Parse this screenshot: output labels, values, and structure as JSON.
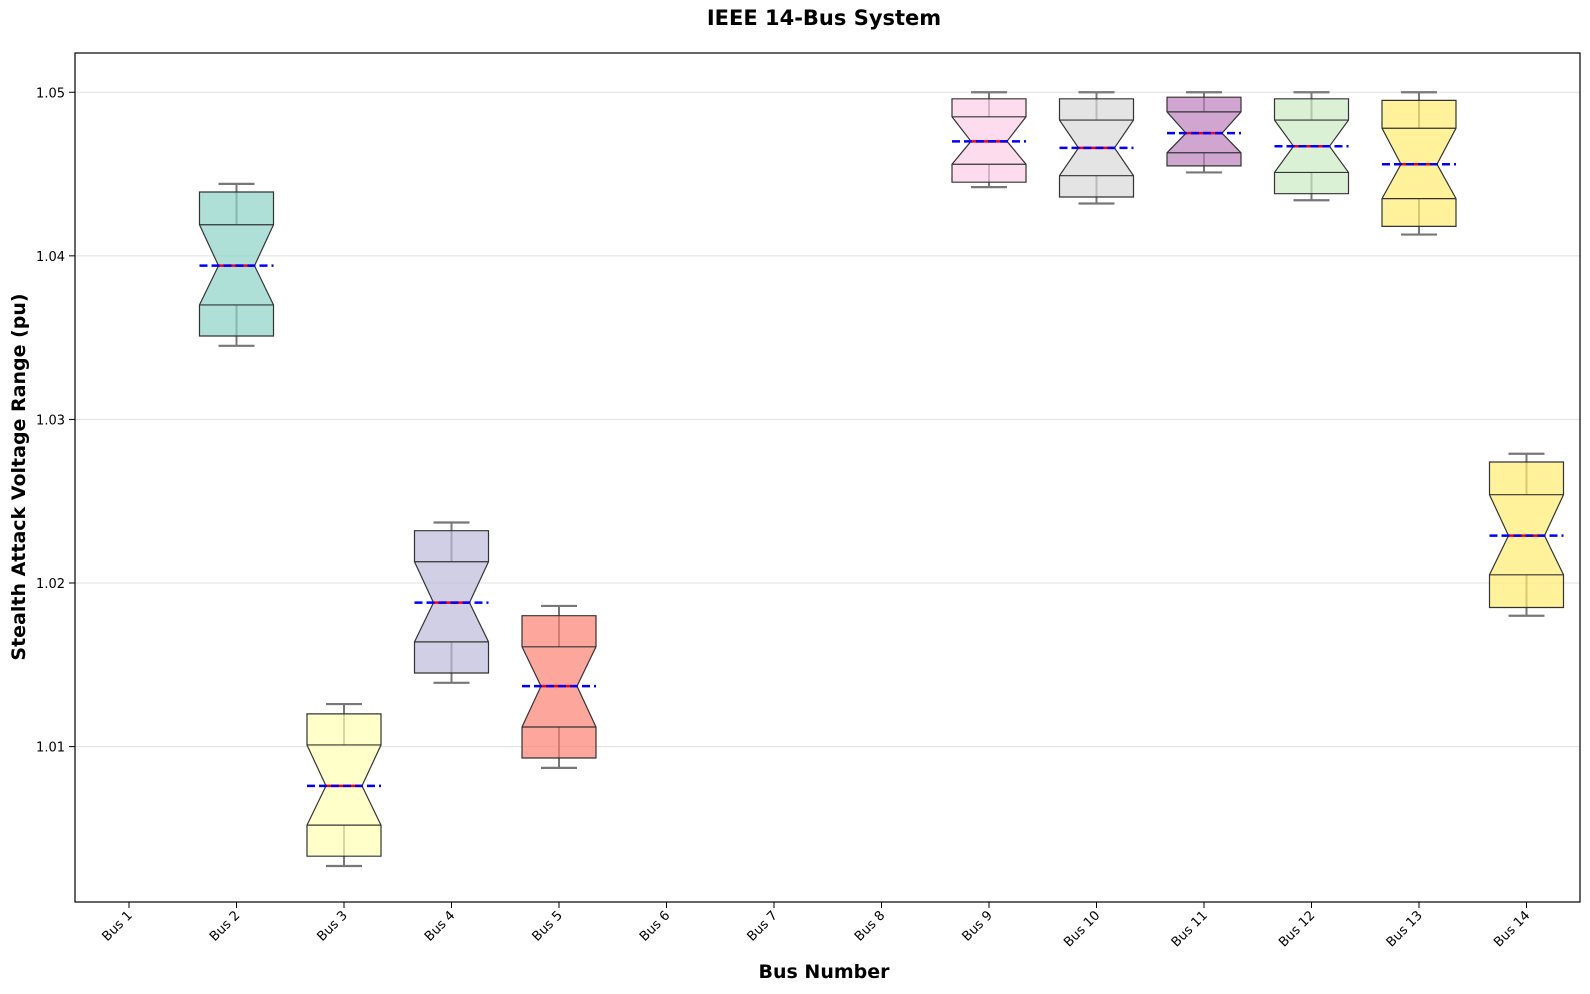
{
  "chart_data": {
    "type": "box",
    "title": "IEEE 14-Bus System",
    "xlabel": "Bus Number",
    "ylabel": "Stealth Attack Voltage Range (pu)",
    "categories": [
      "Bus 1",
      "Bus 2",
      "Bus 3",
      "Bus 4",
      "Bus 5",
      "Bus 6",
      "Bus 7",
      "Bus 8",
      "Bus 9",
      "Bus 10",
      "Bus 11",
      "Bus 12",
      "Bus 13",
      "Bus 14"
    ],
    "ylim": [
      1.0005,
      1.0524
    ],
    "yticks": [
      "1.01",
      "1.02",
      "1.03",
      "1.04",
      "1.05"
    ],
    "grid": "horizontal",
    "boxes": [
      {
        "category": "Bus 2",
        "whisker_low": 1.0345,
        "q1": 1.037,
        "median": 1.0394,
        "mean": 1.0394,
        "q3": 1.0419,
        "whisker_high": 1.0444,
        "notch_low": 1.0351,
        "notch_high": 1.0439,
        "color": "#8dd3c7"
      },
      {
        "category": "Bus 3",
        "whisker_low": 1.0027,
        "q1": 1.0052,
        "median": 1.0076,
        "mean": 1.0076,
        "q3": 1.0101,
        "whisker_high": 1.0126,
        "notch_low": 1.0033,
        "notch_high": 1.012,
        "color": "#ffffb3"
      },
      {
        "category": "Bus 4",
        "whisker_low": 1.0139,
        "q1": 1.0164,
        "median": 1.0188,
        "mean": 1.0188,
        "q3": 1.0213,
        "whisker_high": 1.0237,
        "notch_low": 1.0145,
        "notch_high": 1.0232,
        "color": "#bebada"
      },
      {
        "category": "Bus 5",
        "whisker_low": 1.0087,
        "q1": 1.0112,
        "median": 1.0137,
        "mean": 1.0137,
        "q3": 1.0161,
        "whisker_high": 1.0186,
        "notch_low": 1.0093,
        "notch_high": 1.018,
        "color": "#fb8072"
      },
      {
        "category": "Bus 9",
        "whisker_low": 1.0442,
        "q1": 1.0456,
        "median": 1.047,
        "mean": 1.047,
        "q3": 1.0485,
        "whisker_high": 1.05,
        "notch_low": 1.0445,
        "notch_high": 1.0496,
        "color": "#fccde5"
      },
      {
        "category": "Bus 10",
        "whisker_low": 1.0432,
        "q1": 1.0449,
        "median": 1.0466,
        "mean": 1.0466,
        "q3": 1.0483,
        "whisker_high": 1.05,
        "notch_low": 1.0436,
        "notch_high": 1.0496,
        "color": "#d9d9d9"
      },
      {
        "category": "Bus 11",
        "whisker_low": 1.0451,
        "q1": 1.0463,
        "median": 1.0475,
        "mean": 1.0475,
        "q3": 1.0488,
        "whisker_high": 1.05,
        "notch_low": 1.0455,
        "notch_high": 1.0497,
        "color": "#bc80bd"
      },
      {
        "category": "Bus 12",
        "whisker_low": 1.0434,
        "q1": 1.0451,
        "median": 1.0467,
        "mean": 1.0467,
        "q3": 1.0483,
        "whisker_high": 1.05,
        "notch_low": 1.0438,
        "notch_high": 1.0496,
        "color": "#ccebc5"
      },
      {
        "category": "Bus 13",
        "whisker_low": 1.0413,
        "q1": 1.0435,
        "median": 1.0456,
        "mean": 1.0456,
        "q3": 1.0478,
        "whisker_high": 1.05,
        "notch_low": 1.0418,
        "notch_high": 1.0495,
        "color": "#ffed6f"
      },
      {
        "category": "Bus 14",
        "whisker_low": 1.018,
        "q1": 1.0205,
        "median": 1.0229,
        "mean": 1.0229,
        "q3": 1.0254,
        "whisker_high": 1.0279,
        "notch_low": 1.0185,
        "notch_high": 1.0274,
        "color": "#ffed6f"
      }
    ],
    "style": {
      "box_edge_color": "#333333",
      "whisker_color": "#777777",
      "median_color": "#ff0000",
      "mean_line_color": "#0000ff",
      "grid_color": "#e0e0e0",
      "box_alpha": 0.7
    }
  }
}
